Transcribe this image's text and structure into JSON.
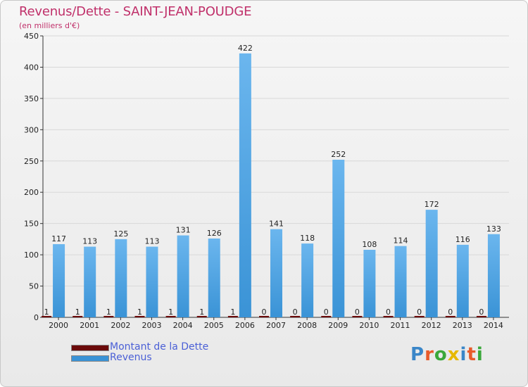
{
  "header": {
    "title": "Revenus/Dette - SAINT-JEAN-POUDGE",
    "subtitle": "(en milliers d'€)"
  },
  "legend": {
    "debt_label": "Montant de la Dette",
    "revenue_label": "Revenus"
  },
  "logo": {
    "letters": [
      "P",
      "r",
      "o",
      "x",
      "i",
      "t",
      "i"
    ],
    "colors": [
      "#3a86c8",
      "#e85a2a",
      "#3aa83a",
      "#e6b800",
      "#3a86c8",
      "#e85a2a",
      "#3aa83a"
    ]
  },
  "colors": {
    "revenue": "#3a93d6",
    "revenue_light": "#6bb6ee",
    "debt": "#6b0a0a",
    "axis": "#333333",
    "grid": "#d8d8d8"
  },
  "chart_data": {
    "type": "bar",
    "title": "Revenus/Dette - SAINT-JEAN-POUDGE",
    "ylabel": "(en milliers d'€)",
    "xlabel": "",
    "ylim": [
      0,
      450
    ],
    "yticks": [
      0,
      50,
      100,
      150,
      200,
      250,
      300,
      350,
      400,
      450
    ],
    "categories": [
      "2000",
      "2001",
      "2002",
      "2003",
      "2004",
      "2005",
      "2006",
      "2007",
      "2008",
      "2009",
      "2010",
      "2011",
      "2012",
      "2013",
      "2014"
    ],
    "series": [
      {
        "name": "Montant de la Dette",
        "values": [
          1,
          1,
          1,
          1,
          1,
          1,
          1,
          0,
          0,
          0,
          0,
          0,
          0,
          0,
          0
        ]
      },
      {
        "name": "Revenus",
        "values": [
          117,
          113,
          125,
          113,
          131,
          126,
          422,
          141,
          118,
          252,
          108,
          114,
          172,
          116,
          133
        ]
      }
    ],
    "legend_position": "bottom-left"
  }
}
